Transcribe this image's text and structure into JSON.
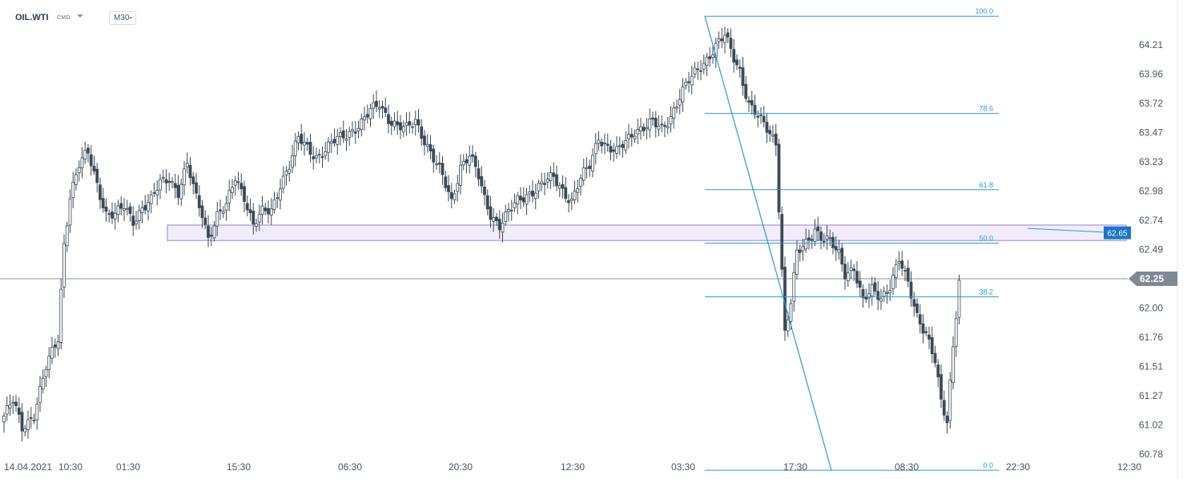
{
  "header": {
    "symbol": "OIL.WTI",
    "market": "CMD",
    "timeframe": "M30"
  },
  "colors": {
    "candle": "#3d4a56",
    "fib": "#2a9ad8",
    "zone_fill": "#f1edfb",
    "zone_border": "#b9a9e6",
    "price_line": "#8a949e",
    "current_tag": "#7f8993",
    "zone_tag": "#1976c8",
    "axis_text": "#4a5563"
  },
  "price_axis": {
    "ticks": [
      "64.21",
      "63.96",
      "63.72",
      "63.47",
      "63.23",
      "62.98",
      "62.74",
      "62.49",
      "62.25",
      "62.00",
      "61.76",
      "61.51",
      "61.27",
      "61.02",
      "60.78"
    ],
    "current_price": "62.25",
    "zone_level": "62.65"
  },
  "time_axis": [
    "14.04.2021",
    "10:30",
    "01:30",
    "15:30",
    "06:30",
    "20:30",
    "12:30",
    "03:30",
    "17:30",
    "08:30",
    "22:30",
    "12:30"
  ],
  "fibonacci": {
    "levels": [
      {
        "label": "100.0",
        "value": 64.45
      },
      {
        "label": "78.6",
        "value": 63.6356
      },
      {
        "label": "61.8",
        "value": 62.9965
      },
      {
        "label": "50.0",
        "value": 62.5475
      },
      {
        "label": "38.2",
        "value": 62.0985
      },
      {
        "label": "0.0",
        "value": 60.645
      }
    ]
  },
  "zone": {
    "top": 62.7,
    "bottom": 62.57
  },
  "chart_data": {
    "type": "candlestick",
    "symbol": "OIL.WTI",
    "timeframe": "M30",
    "ylim": [
      60.72,
      64.52
    ],
    "x_ticks": [
      "14.04.2021",
      "10:30",
      "01:30",
      "15:30",
      "06:30",
      "20:30",
      "12:30",
      "03:30",
      "17:30",
      "08:30",
      "22:30",
      "12:30"
    ],
    "close_path": [
      [
        0,
        61.1
      ],
      [
        3,
        61.22
      ],
      [
        6,
        61.0
      ],
      [
        10,
        61.12
      ],
      [
        14,
        61.5
      ],
      [
        18,
        61.75
      ],
      [
        20,
        62.55
      ],
      [
        22,
        62.95
      ],
      [
        25,
        63.2
      ],
      [
        28,
        63.3
      ],
      [
        31,
        63.05
      ],
      [
        34,
        62.8
      ],
      [
        37,
        62.78
      ],
      [
        40,
        62.85
      ],
      [
        43,
        62.74
      ],
      [
        46,
        62.85
      ],
      [
        49,
        62.9
      ],
      [
        52,
        63.05
      ],
      [
        55,
        63.1
      ],
      [
        58,
        62.98
      ],
      [
        61,
        63.2
      ],
      [
        64,
        62.92
      ],
      [
        66,
        62.8
      ],
      [
        68,
        62.6
      ],
      [
        71,
        62.78
      ],
      [
        74,
        62.85
      ],
      [
        77,
        63.1
      ],
      [
        80,
        62.95
      ],
      [
        83,
        62.7
      ],
      [
        86,
        62.8
      ],
      [
        89,
        62.82
      ],
      [
        92,
        63.05
      ],
      [
        95,
        63.2
      ],
      [
        98,
        63.42
      ],
      [
        101,
        63.35
      ],
      [
        104,
        63.28
      ],
      [
        107,
        63.32
      ],
      [
        110,
        63.4
      ],
      [
        113,
        63.45
      ],
      [
        116,
        63.5
      ],
      [
        119,
        63.55
      ],
      [
        122,
        63.65
      ],
      [
        125,
        63.72
      ],
      [
        128,
        63.6
      ],
      [
        131,
        63.52
      ],
      [
        134,
        63.5
      ],
      [
        137,
        63.58
      ],
      [
        140,
        63.42
      ],
      [
        143,
        63.25
      ],
      [
        146,
        63.1
      ],
      [
        149,
        62.9
      ],
      [
        152,
        63.2
      ],
      [
        155,
        63.28
      ],
      [
        158,
        63.1
      ],
      [
        160,
        62.92
      ],
      [
        162,
        62.8
      ],
      [
        165,
        62.7
      ],
      [
        168,
        62.8
      ],
      [
        171,
        62.9
      ],
      [
        174,
        62.96
      ],
      [
        177,
        63.0
      ],
      [
        180,
        63.05
      ],
      [
        183,
        63.1
      ],
      [
        186,
        63.0
      ],
      [
        189,
        62.9
      ],
      [
        192,
        63.08
      ],
      [
        195,
        63.2
      ],
      [
        198,
        63.45
      ],
      [
        201,
        63.35
      ],
      [
        204,
        63.3
      ],
      [
        207,
        63.4
      ],
      [
        210,
        63.5
      ],
      [
        213,
        63.52
      ],
      [
        216,
        63.55
      ],
      [
        219,
        63.5
      ],
      [
        222,
        63.62
      ],
      [
        225,
        63.78
      ],
      [
        228,
        63.9
      ],
      [
        231,
        64.0
      ],
      [
        234,
        64.1
      ],
      [
        237,
        64.2
      ],
      [
        240,
        64.28
      ],
      [
        243,
        64.1
      ],
      [
        245,
        64.0
      ],
      [
        248,
        63.72
      ],
      [
        251,
        63.6
      ],
      [
        254,
        63.5
      ],
      [
        257,
        63.4
      ],
      [
        260,
        61.8
      ],
      [
        262,
        62.05
      ],
      [
        264,
        62.45
      ],
      [
        267,
        62.55
      ],
      [
        270,
        62.68
      ],
      [
        272,
        62.6
      ],
      [
        275,
        62.55
      ],
      [
        278,
        62.45
      ],
      [
        280,
        62.3
      ],
      [
        283,
        62.35
      ],
      [
        286,
        62.05
      ],
      [
        289,
        62.15
      ],
      [
        292,
        62.1
      ],
      [
        295,
        62.2
      ],
      [
        298,
        62.4
      ],
      [
        301,
        62.2
      ],
      [
        304,
        61.95
      ],
      [
        307,
        61.8
      ],
      [
        310,
        61.55
      ],
      [
        312,
        61.2
      ],
      [
        314,
        61.05
      ],
      [
        316,
        61.7
      ],
      [
        318,
        62.25
      ]
    ]
  }
}
